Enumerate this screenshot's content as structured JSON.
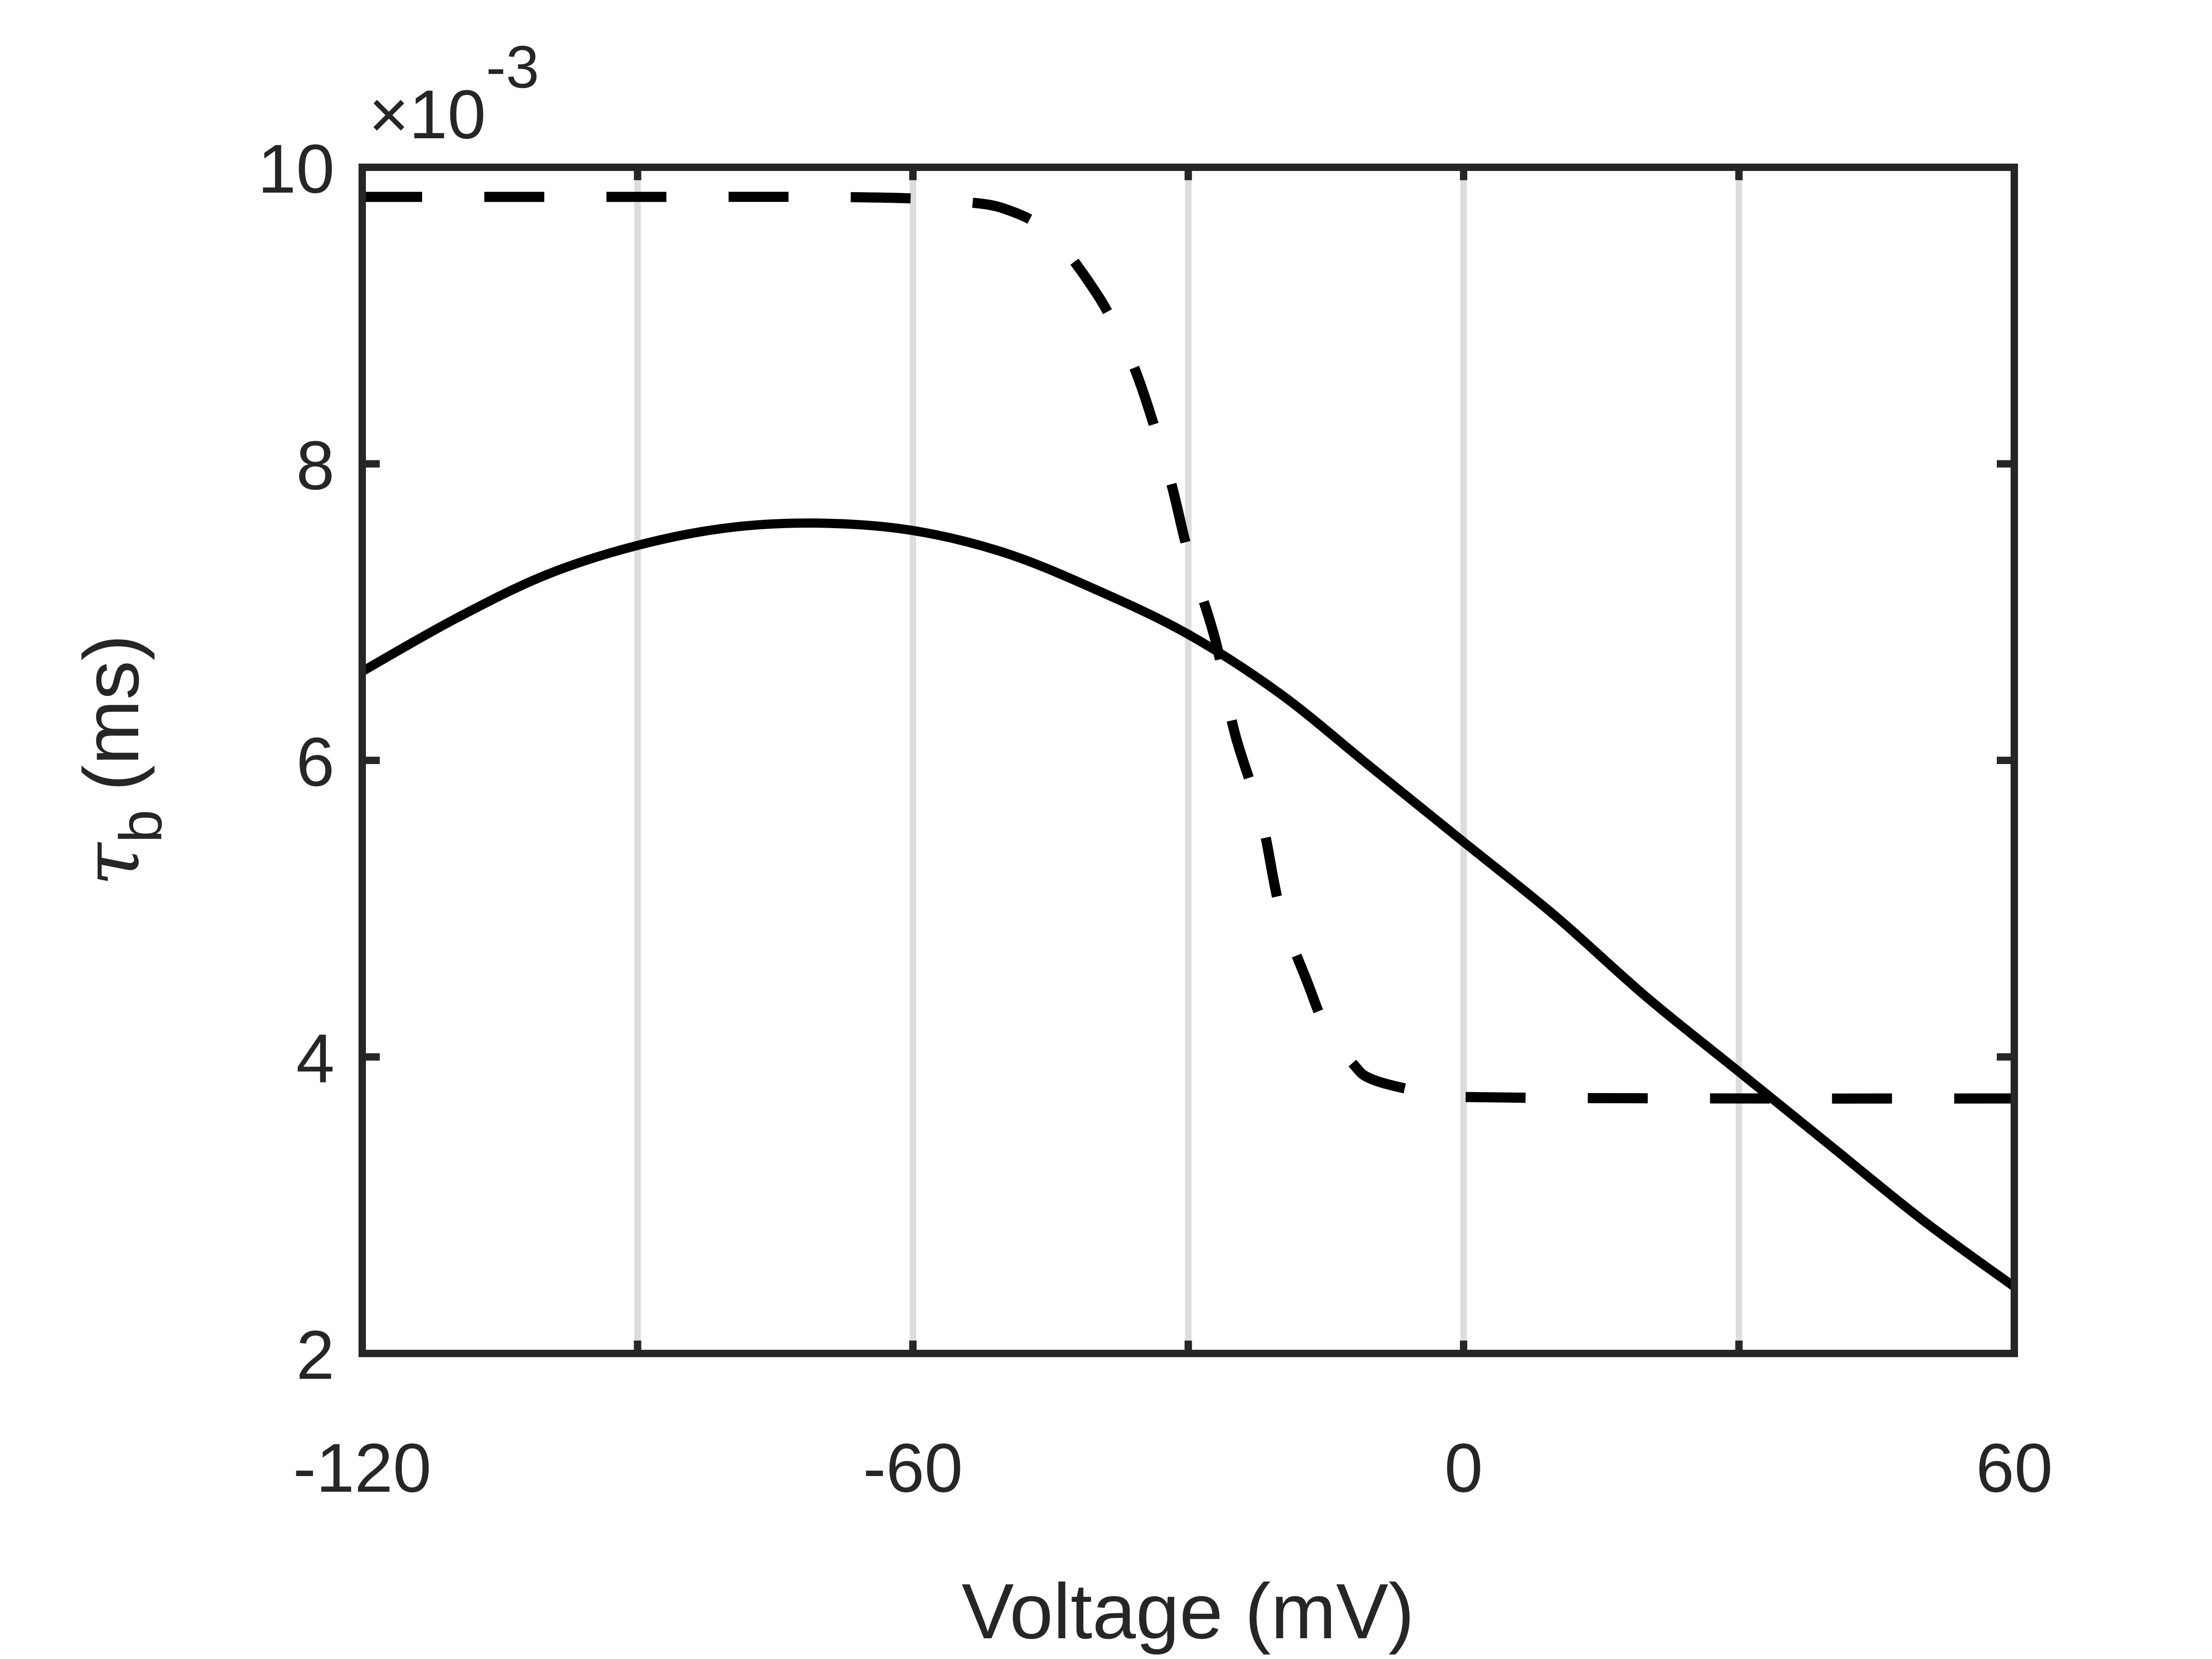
{
  "chart_data": {
    "type": "line",
    "xlabel": "Voltage (mV)",
    "ylabel_symbol": "τ",
    "ylabel_subscript": "b",
    "ylabel_unit": "(ms)",
    "y_multiplier": "×10",
    "y_multiplier_exponent": "-3",
    "xlim": [
      -120,
      60
    ],
    "ylim": [
      2,
      10
    ],
    "x_ticks": [
      -120,
      -60,
      0,
      60
    ],
    "x_tick_labels": [
      "-120",
      "-60",
      "0",
      "60"
    ],
    "y_ticks": [
      2,
      4,
      6,
      8,
      10
    ],
    "y_tick_labels": [
      "2",
      "4",
      "6",
      "8",
      "10"
    ],
    "x_gridlines": [
      -90,
      -60,
      -30,
      0,
      30
    ],
    "grid": "vertical gridlines only",
    "legend": "none",
    "series": [
      {
        "style": "solid",
        "color": "#000000",
        "x": [
          -120,
          -110,
          -100,
          -90,
          -80,
          -70,
          -60,
          -50,
          -40,
          -30,
          -20,
          -10,
          0,
          10,
          20,
          30,
          40,
          50,
          60
        ],
        "y": [
          6.6,
          6.95,
          7.25,
          7.45,
          7.57,
          7.6,
          7.55,
          7.4,
          7.15,
          6.85,
          6.45,
          5.95,
          5.45,
          4.95,
          4.4,
          3.9,
          3.4,
          2.9,
          2.45
        ]
      },
      {
        "style": "dashed",
        "color": "#000000",
        "x": [
          -120,
          -90,
          -70,
          -60,
          -55,
          -50,
          -45,
          -40,
          -37,
          -35,
          -32,
          -30,
          -27,
          -25,
          -22,
          -20,
          -17,
          -15,
          -12,
          -10,
          -5,
          0,
          30,
          60
        ],
        "y": [
          9.8,
          9.8,
          9.8,
          9.79,
          9.77,
          9.72,
          9.55,
          9.15,
          8.8,
          8.5,
          7.9,
          7.4,
          6.8,
          6.2,
          5.6,
          5.0,
          4.5,
          4.2,
          3.95,
          3.85,
          3.77,
          3.73,
          3.72,
          3.72
        ]
      }
    ]
  }
}
